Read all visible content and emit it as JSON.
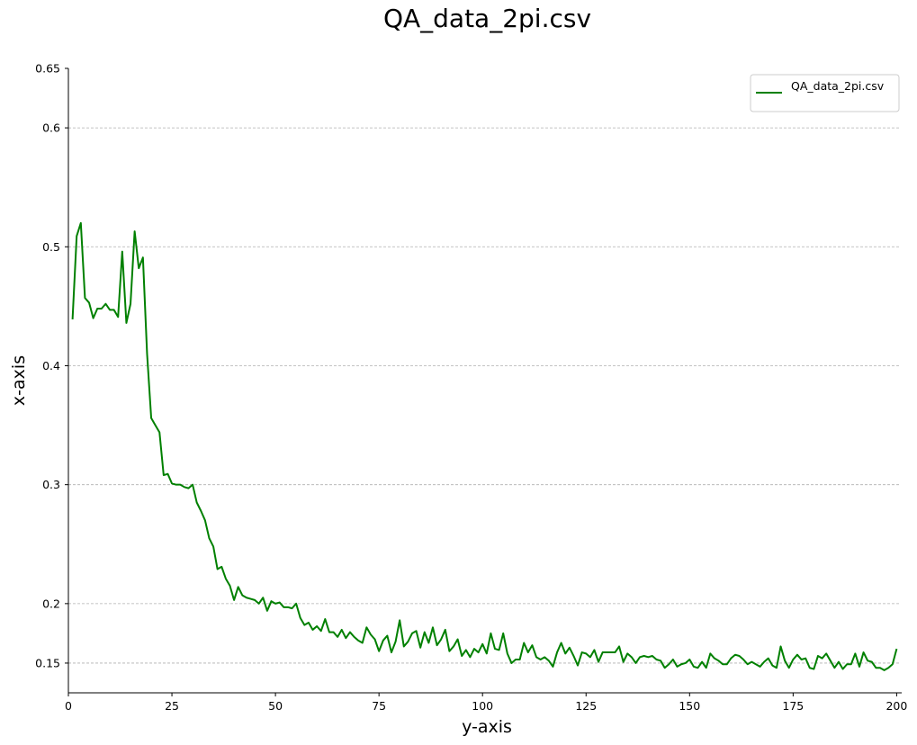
{
  "chart_data": {
    "type": "line",
    "title": "QA_data_2pi.csv",
    "xlabel": "y-axis",
    "ylabel": "x-axis",
    "xlim": [
      0,
      201
    ],
    "ylim": [
      0.125,
      0.65
    ],
    "x_ticks": [
      0,
      25,
      50,
      75,
      100,
      125,
      150,
      175,
      200
    ],
    "y_ticks": [
      0.15,
      0.2,
      0.3,
      0.4,
      0.5,
      0.6,
      0.65
    ],
    "y_tick_labels": [
      "0.15",
      "0.2",
      "0.3",
      "0.4",
      "0.5",
      "0.6",
      "0.65"
    ],
    "grid": "horizontal dashed",
    "legend_position": "top-right",
    "series": [
      {
        "name": "QA_data_2pi.csv",
        "color": "#008000",
        "x_start": 1,
        "x_step": 1,
        "y": [
          0.439,
          0.509,
          0.52,
          0.457,
          0.453,
          0.44,
          0.448,
          0.448,
          0.452,
          0.447,
          0.447,
          0.441,
          0.496,
          0.436,
          0.452,
          0.513,
          0.482,
          0.491,
          0.41,
          0.356,
          0.35,
          0.344,
          0.308,
          0.309,
          0.301,
          0.3,
          0.3,
          0.298,
          0.297,
          0.3,
          0.285,
          0.278,
          0.27,
          0.255,
          0.248,
          0.229,
          0.231,
          0.221,
          0.215,
          0.203,
          0.214,
          0.207,
          0.205,
          0.204,
          0.203,
          0.2,
          0.205,
          0.194,
          0.202,
          0.2,
          0.201,
          0.197,
          0.197,
          0.196,
          0.2,
          0.188,
          0.182,
          0.184,
          0.178,
          0.181,
          0.177,
          0.187,
          0.176,
          0.176,
          0.172,
          0.178,
          0.171,
          0.176,
          0.172,
          0.169,
          0.167,
          0.18,
          0.174,
          0.17,
          0.16,
          0.169,
          0.173,
          0.159,
          0.168,
          0.186,
          0.164,
          0.168,
          0.175,
          0.177,
          0.163,
          0.176,
          0.167,
          0.18,
          0.165,
          0.17,
          0.178,
          0.16,
          0.164,
          0.17,
          0.156,
          0.161,
          0.155,
          0.162,
          0.159,
          0.166,
          0.158,
          0.175,
          0.162,
          0.161,
          0.175,
          0.158,
          0.15,
          0.153,
          0.153,
          0.167,
          0.159,
          0.165,
          0.155,
          0.153,
          0.155,
          0.152,
          0.147,
          0.159,
          0.167,
          0.158,
          0.163,
          0.156,
          0.148,
          0.159,
          0.158,
          0.155,
          0.161,
          0.151,
          0.159,
          0.159,
          0.159,
          0.159,
          0.164,
          0.151,
          0.158,
          0.155,
          0.15,
          0.155,
          0.156,
          0.155,
          0.156,
          0.153,
          0.152,
          0.146,
          0.149,
          0.153,
          0.147,
          0.149,
          0.15,
          0.153,
          0.147,
          0.146,
          0.151,
          0.146,
          0.158,
          0.154,
          0.152,
          0.149,
          0.149,
          0.154,
          0.157,
          0.156,
          0.153,
          0.149,
          0.151,
          0.149,
          0.147,
          0.151,
          0.154,
          0.148,
          0.146,
          0.164,
          0.152,
          0.146,
          0.153,
          0.157,
          0.153,
          0.154,
          0.146,
          0.145,
          0.156,
          0.154,
          0.158,
          0.152,
          0.146,
          0.151,
          0.145,
          0.149,
          0.149,
          0.158,
          0.147,
          0.159,
          0.152,
          0.151,
          0.146,
          0.146,
          0.144,
          0.146,
          0.149,
          0.162
        ]
      }
    ]
  }
}
